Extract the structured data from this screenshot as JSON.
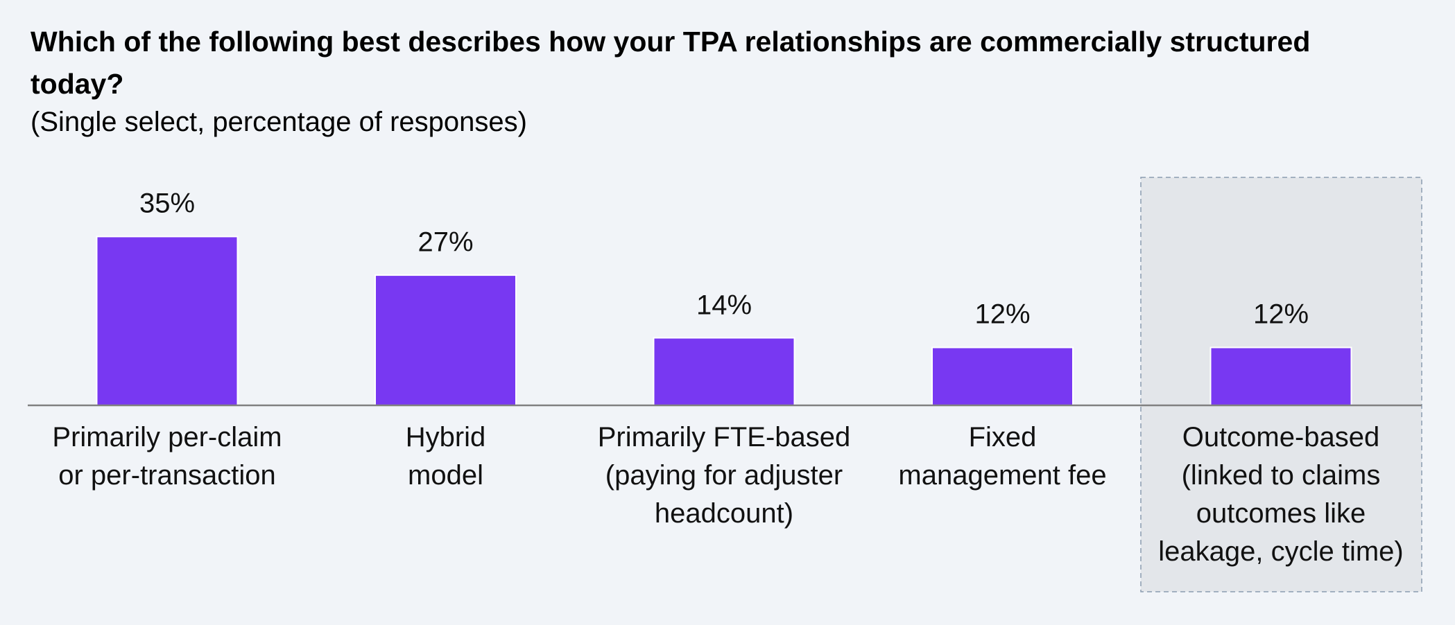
{
  "chart_data": {
    "type": "bar",
    "title": "Which of the following best describes how your TPA relationships are commercially structured today?",
    "subtitle": "(Single select, percentage of responses)",
    "categories": [
      "Primarily per-claim\nor per-transaction",
      "Hybrid\nmodel",
      "Primarily FTE-based\n(paying for adjuster\nheadcount)",
      "Fixed\nmanagement fee",
      "Outcome-based\n(linked to claims\noutcomes like\nleakage, cycle time)"
    ],
    "values": [
      35,
      27,
      14,
      12,
      12
    ],
    "value_labels": [
      "35%",
      "27%",
      "14%",
      "12%",
      "12%"
    ],
    "color": "#7838f2",
    "highlight": 4
  }
}
